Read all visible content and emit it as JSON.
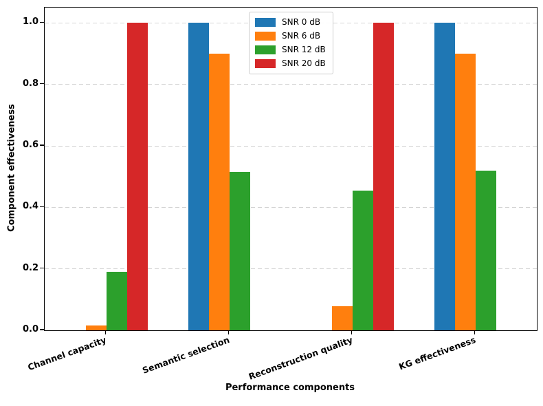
{
  "chart_data": {
    "type": "bar",
    "title": "",
    "xlabel": "Performance components",
    "ylabel": "Component effectiveness",
    "categories": [
      "Channel capacity",
      "Semantic selection",
      "Reconstruction quality",
      "KG effectiveness"
    ],
    "series": [
      {
        "name": "SNR 0 dB",
        "color": "#1f77b4",
        "values": [
          0.0,
          1.0,
          0.0,
          1.0
        ]
      },
      {
        "name": "SNR 6 dB",
        "color": "#ff7f0e",
        "values": [
          0.015,
          0.9,
          0.078,
          0.9
        ]
      },
      {
        "name": "SNR 12 dB",
        "color": "#2ca02c",
        "values": [
          0.19,
          0.515,
          0.455,
          0.52
        ]
      },
      {
        "name": "SNR 20 dB",
        "color": "#d62728",
        "values": [
          1.0,
          0.0,
          1.0,
          0.0
        ]
      }
    ],
    "ylim": [
      0,
      1.05
    ],
    "yticks": [
      0.0,
      0.2,
      0.4,
      0.6,
      0.8,
      1.0
    ],
    "grid": true,
    "grid_style": "dashed",
    "legend_position": "upper center",
    "legend_border_color": "#cccccc"
  }
}
